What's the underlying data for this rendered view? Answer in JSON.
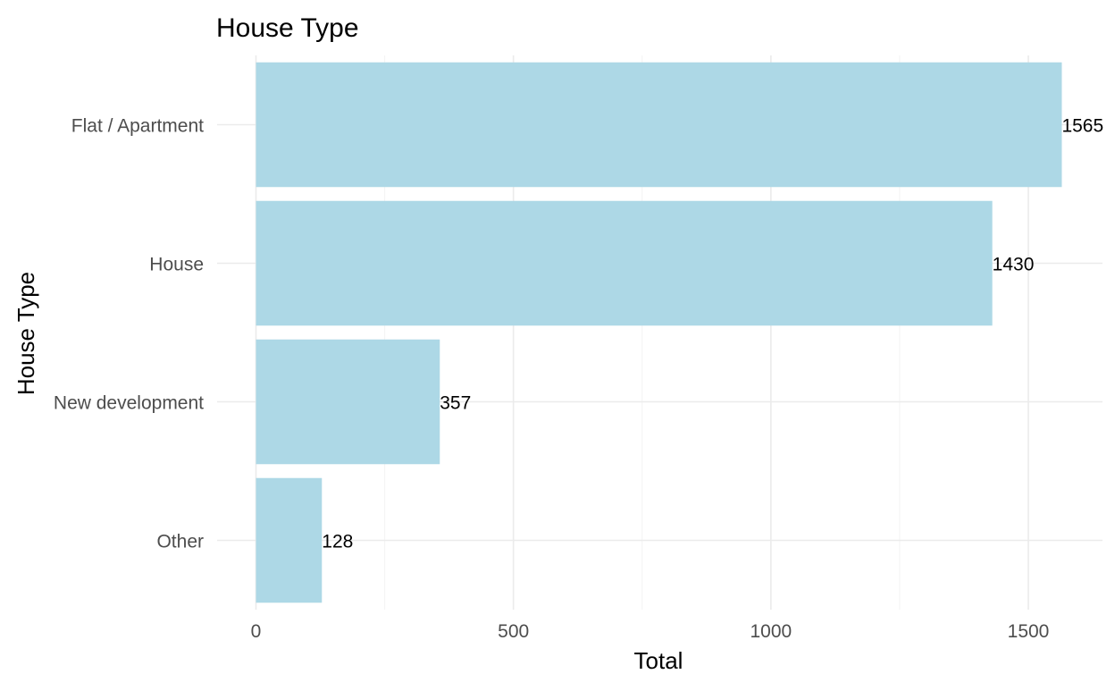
{
  "chart_data": {
    "type": "bar",
    "orientation": "horizontal",
    "title": "House Type",
    "xlabel": "Total",
    "ylabel": "House Type",
    "categories": [
      "Flat / Apartment",
      "House",
      "New development",
      "Other"
    ],
    "values": [
      1565,
      1430,
      357,
      128
    ],
    "data_labels": [
      "1565",
      "1430",
      "357",
      "128"
    ],
    "xlim": [
      0,
      1640
    ],
    "x_ticks": [
      0,
      500,
      1000,
      1500
    ],
    "x_tick_labels": [
      "0",
      "500",
      "1000",
      "1500"
    ],
    "x_minor_ticks": [
      250,
      750,
      1250
    ],
    "grid": true,
    "legend": "none",
    "bar_color": "#add8e6"
  }
}
